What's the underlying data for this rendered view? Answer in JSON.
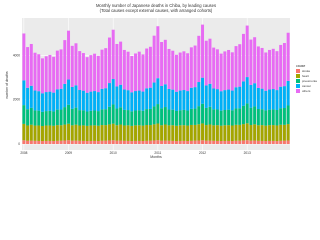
{
  "chart_data": {
    "type": "stacked_bar",
    "title": "Monthly number of Japanese deaths in Chiba, by leading causes",
    "subtitle": "(Total causes except external causes, with arranged cohorts)",
    "x_label": "Months",
    "y_label": "number of deaths",
    "legend_title": "cause",
    "legend_position": "right",
    "grid": true,
    "categories": [
      "2008",
      null,
      null,
      null,
      null,
      null,
      null,
      null,
      null,
      null,
      null,
      null,
      "2009",
      null,
      null,
      null,
      null,
      null,
      null,
      null,
      null,
      null,
      null,
      null,
      "2010",
      null,
      null,
      null,
      null,
      null,
      null,
      null,
      null,
      null,
      null,
      null,
      "2011",
      null,
      null,
      null,
      null,
      null,
      null,
      null,
      null,
      null,
      null,
      null,
      "2012",
      null,
      null,
      null,
      null,
      null,
      null,
      null,
      null,
      null,
      null,
      null,
      "2013",
      null,
      null,
      null,
      null,
      null,
      null,
      null,
      null,
      null,
      null,
      null
    ],
    "ylim": [
      -270,
      5700
    ],
    "yticks": [
      0,
      2000,
      4000
    ],
    "series": [
      {
        "name": "stroke",
        "color": "#F8766D",
        "values": [
          170,
          150,
          155,
          145,
          140,
          135,
          140,
          140,
          135,
          145,
          150,
          160,
          172,
          151,
          154,
          146,
          141,
          136,
          139,
          141,
          136,
          146,
          151,
          162,
          170,
          152,
          156,
          145,
          140,
          134,
          141,
          140,
          137,
          144,
          150,
          161,
          173,
          150,
          155,
          147,
          142,
          135,
          140,
          142,
          135,
          145,
          152,
          160,
          171,
          153,
          154,
          146,
          141,
          137,
          139,
          140,
          136,
          147,
          150,
          163,
          174,
          151,
          157,
          145,
          140,
          136,
          141,
          141,
          135,
          146,
          151,
          161
        ]
      },
      {
        "name": "heart",
        "color": "#A3A500",
        "values": [
          740,
          690,
          720,
          690,
          700,
          680,
          700,
          700,
          690,
          710,
          700,
          720,
          745,
          695,
          722,
          692,
          703,
          684,
          702,
          705,
          693,
          712,
          705,
          725,
          750,
          698,
          726,
          695,
          706,
          686,
          705,
          708,
          696,
          716,
          708,
          730,
          755,
          700,
          728,
          698,
          708,
          690,
          708,
          710,
          700,
          718,
          712,
          734,
          760,
          705,
          730,
          700,
          712,
          692,
          710,
          714,
          702,
          722,
          715,
          738,
          764,
          708,
          734,
          704,
          715,
          695,
          714,
          716,
          705,
          725,
          718,
          742
        ]
      },
      {
        "name": "pneumonia",
        "color": "#00BF7D",
        "values": [
          850,
          735,
          760,
          685,
          670,
          640,
          650,
          660,
          650,
          700,
          710,
          790,
          860,
          745,
          770,
          695,
          680,
          650,
          660,
          670,
          660,
          710,
          720,
          800,
          870,
          755,
          780,
          705,
          690,
          660,
          670,
          680,
          670,
          720,
          730,
          810,
          880,
          765,
          790,
          715,
          700,
          670,
          680,
          690,
          680,
          730,
          740,
          820,
          890,
          775,
          800,
          725,
          710,
          680,
          690,
          700,
          690,
          740,
          750,
          830,
          900,
          785,
          810,
          735,
          720,
          690,
          700,
          710,
          700,
          750,
          760,
          840
        ]
      },
      {
        "name": "cancer",
        "color": "#00B0F6",
        "values": [
          1120,
          970,
          1000,
          900,
          880,
          840,
          860,
          870,
          850,
          920,
          940,
          1050,
          1140,
          990,
          1010,
          910,
          890,
          850,
          870,
          880,
          860,
          930,
          950,
          1070,
          1150,
          1000,
          1020,
          920,
          900,
          860,
          880,
          890,
          870,
          940,
          960,
          1080,
          1170,
          1010,
          1030,
          930,
          910,
          870,
          890,
          900,
          880,
          950,
          970,
          1090,
          1180,
          1020,
          1040,
          940,
          920,
          880,
          900,
          910,
          890,
          960,
          980,
          1100,
          1190,
          1030,
          1050,
          950,
          930,
          890,
          910,
          920,
          900,
          970,
          990,
          1110
        ]
      },
      {
        "name": "others",
        "color": "#E76BF3",
        "values": [
          2120,
          1840,
          1890,
          1710,
          1670,
          1580,
          1620,
          1660,
          1620,
          1750,
          1780,
          1980,
          2210,
          1860,
          1900,
          1760,
          1700,
          1610,
          1650,
          1690,
          1640,
          1770,
          1810,
          2060,
          2230,
          1920,
          1950,
          1790,
          1740,
          1640,
          1700,
          1760,
          1680,
          1800,
          1850,
          2120,
          2350,
          1990,
          2010,
          1810,
          1760,
          1670,
          1720,
          1750,
          1710,
          1830,
          1880,
          2090,
          2400,
          2020,
          2040,
          1850,
          1800,
          1700,
          1750,
          1790,
          1730,
          1860,
          1920,
          2150,
          2330,
          2050,
          2080,
          1880,
          1840,
          1730,
          1790,
          1820,
          1760,
          1890,
          1950,
          2180
        ]
      }
    ]
  }
}
